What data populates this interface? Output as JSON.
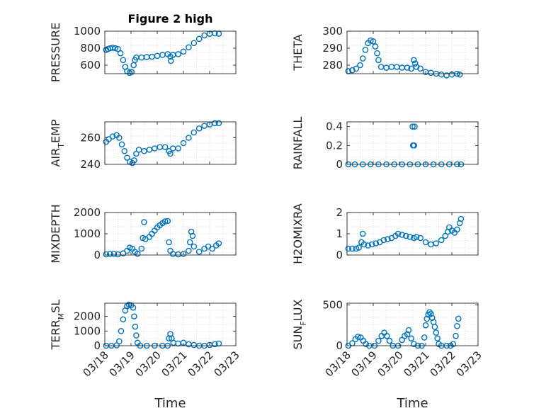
{
  "figure": {
    "title": "Figure 2 high",
    "xlabel": "Time",
    "x_tick_labels": [
      "03/18",
      "03/19",
      "03/20",
      "03/21",
      "03/22",
      "03/23"
    ]
  },
  "colors": {
    "marker": "#0072BD",
    "axis": "#262626",
    "grid": "#d9d9d9",
    "background": "#ffffff"
  },
  "chart_data": [
    {
      "type": "scatter",
      "panel": "top-left",
      "title": "Figure 2 high",
      "ylabel": "PRESSURE",
      "ylim": [
        500,
        1000
      ],
      "yticks": [
        600,
        800,
        1000
      ],
      "xlim": [
        0,
        5
      ],
      "x_tick_labels": [],
      "xlabel": "",
      "grid": true,
      "points": [
        [
          0.05,
          780
        ],
        [
          0.12,
          790
        ],
        [
          0.2,
          800
        ],
        [
          0.3,
          805
        ],
        [
          0.4,
          800
        ],
        [
          0.5,
          790
        ],
        [
          0.6,
          740
        ],
        [
          0.7,
          660
        ],
        [
          0.78,
          580
        ],
        [
          0.85,
          530
        ],
        [
          0.95,
          510
        ],
        [
          1.02,
          520
        ],
        [
          1.1,
          600
        ],
        [
          1.15,
          660
        ],
        [
          1.2,
          690
        ],
        [
          1.4,
          690
        ],
        [
          1.6,
          695
        ],
        [
          1.8,
          700
        ],
        [
          2.0,
          710
        ],
        [
          2.2,
          720
        ],
        [
          2.4,
          730
        ],
        [
          2.5,
          700
        ],
        [
          2.52,
          650
        ],
        [
          2.6,
          720
        ],
        [
          2.8,
          730
        ],
        [
          3.0,
          760
        ],
        [
          3.2,
          810
        ],
        [
          3.4,
          860
        ],
        [
          3.6,
          910
        ],
        [
          3.8,
          950
        ],
        [
          4.0,
          970
        ],
        [
          4.2,
          975
        ],
        [
          4.35,
          970
        ]
      ]
    },
    {
      "type": "scatter",
      "panel": "top-right",
      "ylabel": "THETA",
      "ylim": [
        275,
        300
      ],
      "yticks": [
        280,
        290,
        300
      ],
      "xlim": [
        0,
        5
      ],
      "x_tick_labels": [],
      "xlabel": "",
      "grid": true,
      "points": [
        [
          0.05,
          276.5
        ],
        [
          0.2,
          277
        ],
        [
          0.35,
          278
        ],
        [
          0.5,
          280
        ],
        [
          0.6,
          284
        ],
        [
          0.7,
          289
        ],
        [
          0.8,
          293
        ],
        [
          0.9,
          294.5
        ],
        [
          1.0,
          294
        ],
        [
          1.08,
          291
        ],
        [
          1.15,
          287
        ],
        [
          1.2,
          283
        ],
        [
          1.3,
          279
        ],
        [
          1.5,
          278.5
        ],
        [
          1.7,
          279
        ],
        [
          1.9,
          279
        ],
        [
          2.1,
          278.5
        ],
        [
          2.3,
          278.5
        ],
        [
          2.45,
          278
        ],
        [
          2.55,
          283
        ],
        [
          2.6,
          281
        ],
        [
          2.65,
          279
        ],
        [
          2.8,
          278
        ],
        [
          3.0,
          276
        ],
        [
          3.2,
          275.5
        ],
        [
          3.4,
          275
        ],
        [
          3.6,
          274.5
        ],
        [
          3.8,
          274
        ],
        [
          4.0,
          274.5
        ],
        [
          4.2,
          275
        ],
        [
          4.3,
          274.5
        ]
      ]
    },
    {
      "type": "scatter",
      "panel": "row2-left",
      "ylabel": "AIR_T EMP",
      "ylim": [
        240,
        272
      ],
      "yticks": [
        240,
        260
      ],
      "xlim": [
        0,
        5
      ],
      "x_tick_labels": [],
      "xlabel": "",
      "grid": true,
      "points": [
        [
          0.05,
          257
        ],
        [
          0.15,
          259
        ],
        [
          0.3,
          261
        ],
        [
          0.45,
          262
        ],
        [
          0.55,
          260
        ],
        [
          0.65,
          255
        ],
        [
          0.75,
          250
        ],
        [
          0.85,
          245
        ],
        [
          0.95,
          242
        ],
        [
          1.05,
          241
        ],
        [
          1.12,
          243
        ],
        [
          1.2,
          248
        ],
        [
          1.3,
          251
        ],
        [
          1.5,
          250
        ],
        [
          1.7,
          251
        ],
        [
          1.9,
          252
        ],
        [
          2.1,
          253
        ],
        [
          2.3,
          253
        ],
        [
          2.45,
          250
        ],
        [
          2.5,
          248
        ],
        [
          2.6,
          252
        ],
        [
          2.8,
          252
        ],
        [
          3.0,
          256
        ],
        [
          3.2,
          260
        ],
        [
          3.4,
          264
        ],
        [
          3.6,
          267
        ],
        [
          3.8,
          269
        ],
        [
          4.0,
          270
        ],
        [
          4.2,
          271
        ],
        [
          4.35,
          271
        ]
      ]
    },
    {
      "type": "scatter",
      "panel": "row2-right",
      "ylabel": "RAINFALL",
      "ylim": [
        0,
        0.45
      ],
      "yticks": [
        0,
        0.2,
        0.4
      ],
      "xlim": [
        0,
        5
      ],
      "x_tick_labels": [],
      "xlabel": "",
      "grid": true,
      "points": [
        [
          0.05,
          0
        ],
        [
          0.3,
          0
        ],
        [
          0.6,
          0
        ],
        [
          0.9,
          0
        ],
        [
          1.2,
          0
        ],
        [
          1.5,
          0
        ],
        [
          1.8,
          0
        ],
        [
          2.1,
          0
        ],
        [
          2.4,
          0
        ],
        [
          2.5,
          0.4
        ],
        [
          2.58,
          0.4
        ],
        [
          2.52,
          0.2
        ],
        [
          2.56,
          0.2
        ],
        [
          2.7,
          0
        ],
        [
          3.0,
          0
        ],
        [
          3.3,
          0
        ],
        [
          3.6,
          0
        ],
        [
          3.9,
          0
        ],
        [
          4.2,
          0
        ],
        [
          4.35,
          0
        ]
      ]
    },
    {
      "type": "scatter",
      "panel": "row3-left",
      "ylabel": "MIXDEPTH",
      "ylim": [
        0,
        2000
      ],
      "yticks": [
        0,
        1000,
        2000
      ],
      "xlim": [
        0,
        5
      ],
      "x_tick_labels": [],
      "xlabel": "",
      "grid": true,
      "points": [
        [
          0.05,
          30
        ],
        [
          0.2,
          50
        ],
        [
          0.35,
          60
        ],
        [
          0.5,
          30
        ],
        [
          0.7,
          80
        ],
        [
          0.85,
          200
        ],
        [
          0.95,
          350
        ],
        [
          1.05,
          300
        ],
        [
          1.15,
          150
        ],
        [
          1.25,
          60
        ],
        [
          1.4,
          300
        ],
        [
          1.45,
          800
        ],
        [
          1.5,
          1550
        ],
        [
          1.55,
          750
        ],
        [
          1.7,
          850
        ],
        [
          1.8,
          1000
        ],
        [
          1.9,
          1150
        ],
        [
          2.0,
          1300
        ],
        [
          2.1,
          1400
        ],
        [
          2.2,
          1500
        ],
        [
          2.3,
          1580
        ],
        [
          2.4,
          1600
        ],
        [
          2.45,
          600
        ],
        [
          2.5,
          200
        ],
        [
          2.6,
          50
        ],
        [
          2.8,
          30
        ],
        [
          3.0,
          50
        ],
        [
          3.2,
          200
        ],
        [
          3.25,
          600
        ],
        [
          3.3,
          1100
        ],
        [
          3.35,
          900
        ],
        [
          3.4,
          400
        ],
        [
          3.6,
          150
        ],
        [
          3.8,
          300
        ],
        [
          3.95,
          400
        ],
        [
          4.1,
          300
        ],
        [
          4.25,
          450
        ],
        [
          4.35,
          550
        ]
      ]
    },
    {
      "type": "scatter",
      "panel": "row3-right",
      "ylabel": "H2OMIXRA",
      "ylim": [
        0,
        2
      ],
      "yticks": [
        0,
        1,
        2
      ],
      "xlim": [
        0,
        5
      ],
      "x_tick_labels": [],
      "xlabel": "",
      "grid": true,
      "points": [
        [
          0.05,
          0.3
        ],
        [
          0.2,
          0.3
        ],
        [
          0.35,
          0.3
        ],
        [
          0.45,
          0.35
        ],
        [
          0.55,
          0.6
        ],
        [
          0.6,
          1.0
        ],
        [
          0.65,
          0.5
        ],
        [
          0.8,
          0.45
        ],
        [
          0.95,
          0.5
        ],
        [
          1.1,
          0.55
        ],
        [
          1.25,
          0.6
        ],
        [
          1.4,
          0.7
        ],
        [
          1.55,
          0.75
        ],
        [
          1.7,
          0.8
        ],
        [
          1.85,
          0.9
        ],
        [
          1.95,
          1.0
        ],
        [
          2.1,
          0.95
        ],
        [
          2.25,
          0.9
        ],
        [
          2.4,
          0.85
        ],
        [
          2.55,
          0.8
        ],
        [
          2.65,
          0.85
        ],
        [
          2.8,
          0.8
        ],
        [
          3.0,
          0.6
        ],
        [
          3.2,
          0.5
        ],
        [
          3.4,
          0.55
        ],
        [
          3.6,
          0.7
        ],
        [
          3.75,
          0.9
        ],
        [
          3.85,
          1.1
        ],
        [
          3.9,
          1.3
        ],
        [
          4.0,
          1.15
        ],
        [
          4.1,
          1.05
        ],
        [
          4.2,
          1.2
        ],
        [
          4.3,
          1.5
        ],
        [
          4.35,
          1.7
        ]
      ]
    },
    {
      "type": "scatter",
      "panel": "bottom-left",
      "ylabel": "TERR_M SL",
      "ylim": [
        0,
        2900
      ],
      "yticks": [
        0,
        1000,
        2000
      ],
      "xlim": [
        0,
        5
      ],
      "x_tick_labels": [
        "03/18",
        "03/19",
        "03/20",
        "03/21",
        "03/22",
        "03/23"
      ],
      "xlabel": "Time",
      "grid": true,
      "points": [
        [
          0.05,
          0
        ],
        [
          0.25,
          0
        ],
        [
          0.45,
          20
        ],
        [
          0.55,
          300
        ],
        [
          0.62,
          1000
        ],
        [
          0.7,
          1800
        ],
        [
          0.78,
          2400
        ],
        [
          0.85,
          2700
        ],
        [
          0.92,
          2800
        ],
        [
          1.0,
          2750
        ],
        [
          1.08,
          2600
        ],
        [
          1.12,
          2000
        ],
        [
          1.16,
          1300
        ],
        [
          1.2,
          700
        ],
        [
          1.25,
          200
        ],
        [
          1.35,
          0
        ],
        [
          1.6,
          0
        ],
        [
          1.9,
          0
        ],
        [
          2.2,
          0
        ],
        [
          2.4,
          0
        ],
        [
          2.45,
          500
        ],
        [
          2.5,
          800
        ],
        [
          2.55,
          500
        ],
        [
          2.62,
          200
        ],
        [
          2.8,
          150
        ],
        [
          3.0,
          200
        ],
        [
          3.2,
          100
        ],
        [
          3.4,
          50
        ],
        [
          3.6,
          0
        ],
        [
          3.8,
          0
        ],
        [
          4.0,
          50
        ],
        [
          4.2,
          100
        ],
        [
          4.35,
          150
        ]
      ]
    },
    {
      "type": "scatter",
      "panel": "bottom-right",
      "ylabel": "SUN_F LUX",
      "ylim": [
        0,
        520
      ],
      "yticks": [
        0,
        500
      ],
      "xlim": [
        0,
        5
      ],
      "x_tick_labels": [
        "03/18",
        "03/19",
        "03/20",
        "03/21",
        "03/22",
        "03/23"
      ],
      "xlabel": "Time",
      "grid": true,
      "points": [
        [
          0.05,
          0
        ],
        [
          0.2,
          30
        ],
        [
          0.32,
          80
        ],
        [
          0.42,
          110
        ],
        [
          0.52,
          100
        ],
        [
          0.62,
          60
        ],
        [
          0.72,
          20
        ],
        [
          0.85,
          0
        ],
        [
          1.05,
          0
        ],
        [
          1.2,
          60
        ],
        [
          1.32,
          120
        ],
        [
          1.42,
          160
        ],
        [
          1.52,
          120
        ],
        [
          1.62,
          60
        ],
        [
          1.75,
          0
        ],
        [
          1.95,
          0
        ],
        [
          2.1,
          70
        ],
        [
          2.2,
          120
        ],
        [
          2.3,
          140
        ],
        [
          2.35,
          190
        ],
        [
          2.45,
          90
        ],
        [
          2.55,
          20
        ],
        [
          2.7,
          0
        ],
        [
          2.85,
          0
        ],
        [
          2.95,
          100
        ],
        [
          3.0,
          250
        ],
        [
          3.05,
          330
        ],
        [
          3.1,
          380
        ],
        [
          3.15,
          410
        ],
        [
          3.2,
          390
        ],
        [
          3.25,
          340
        ],
        [
          3.3,
          290
        ],
        [
          3.35,
          230
        ],
        [
          3.4,
          160
        ],
        [
          3.45,
          90
        ],
        [
          3.5,
          20
        ],
        [
          3.6,
          0
        ],
        [
          3.8,
          0
        ],
        [
          3.95,
          0
        ],
        [
          4.05,
          20
        ],
        [
          4.15,
          120
        ],
        [
          4.2,
          240
        ],
        [
          4.25,
          330
        ]
      ]
    }
  ]
}
